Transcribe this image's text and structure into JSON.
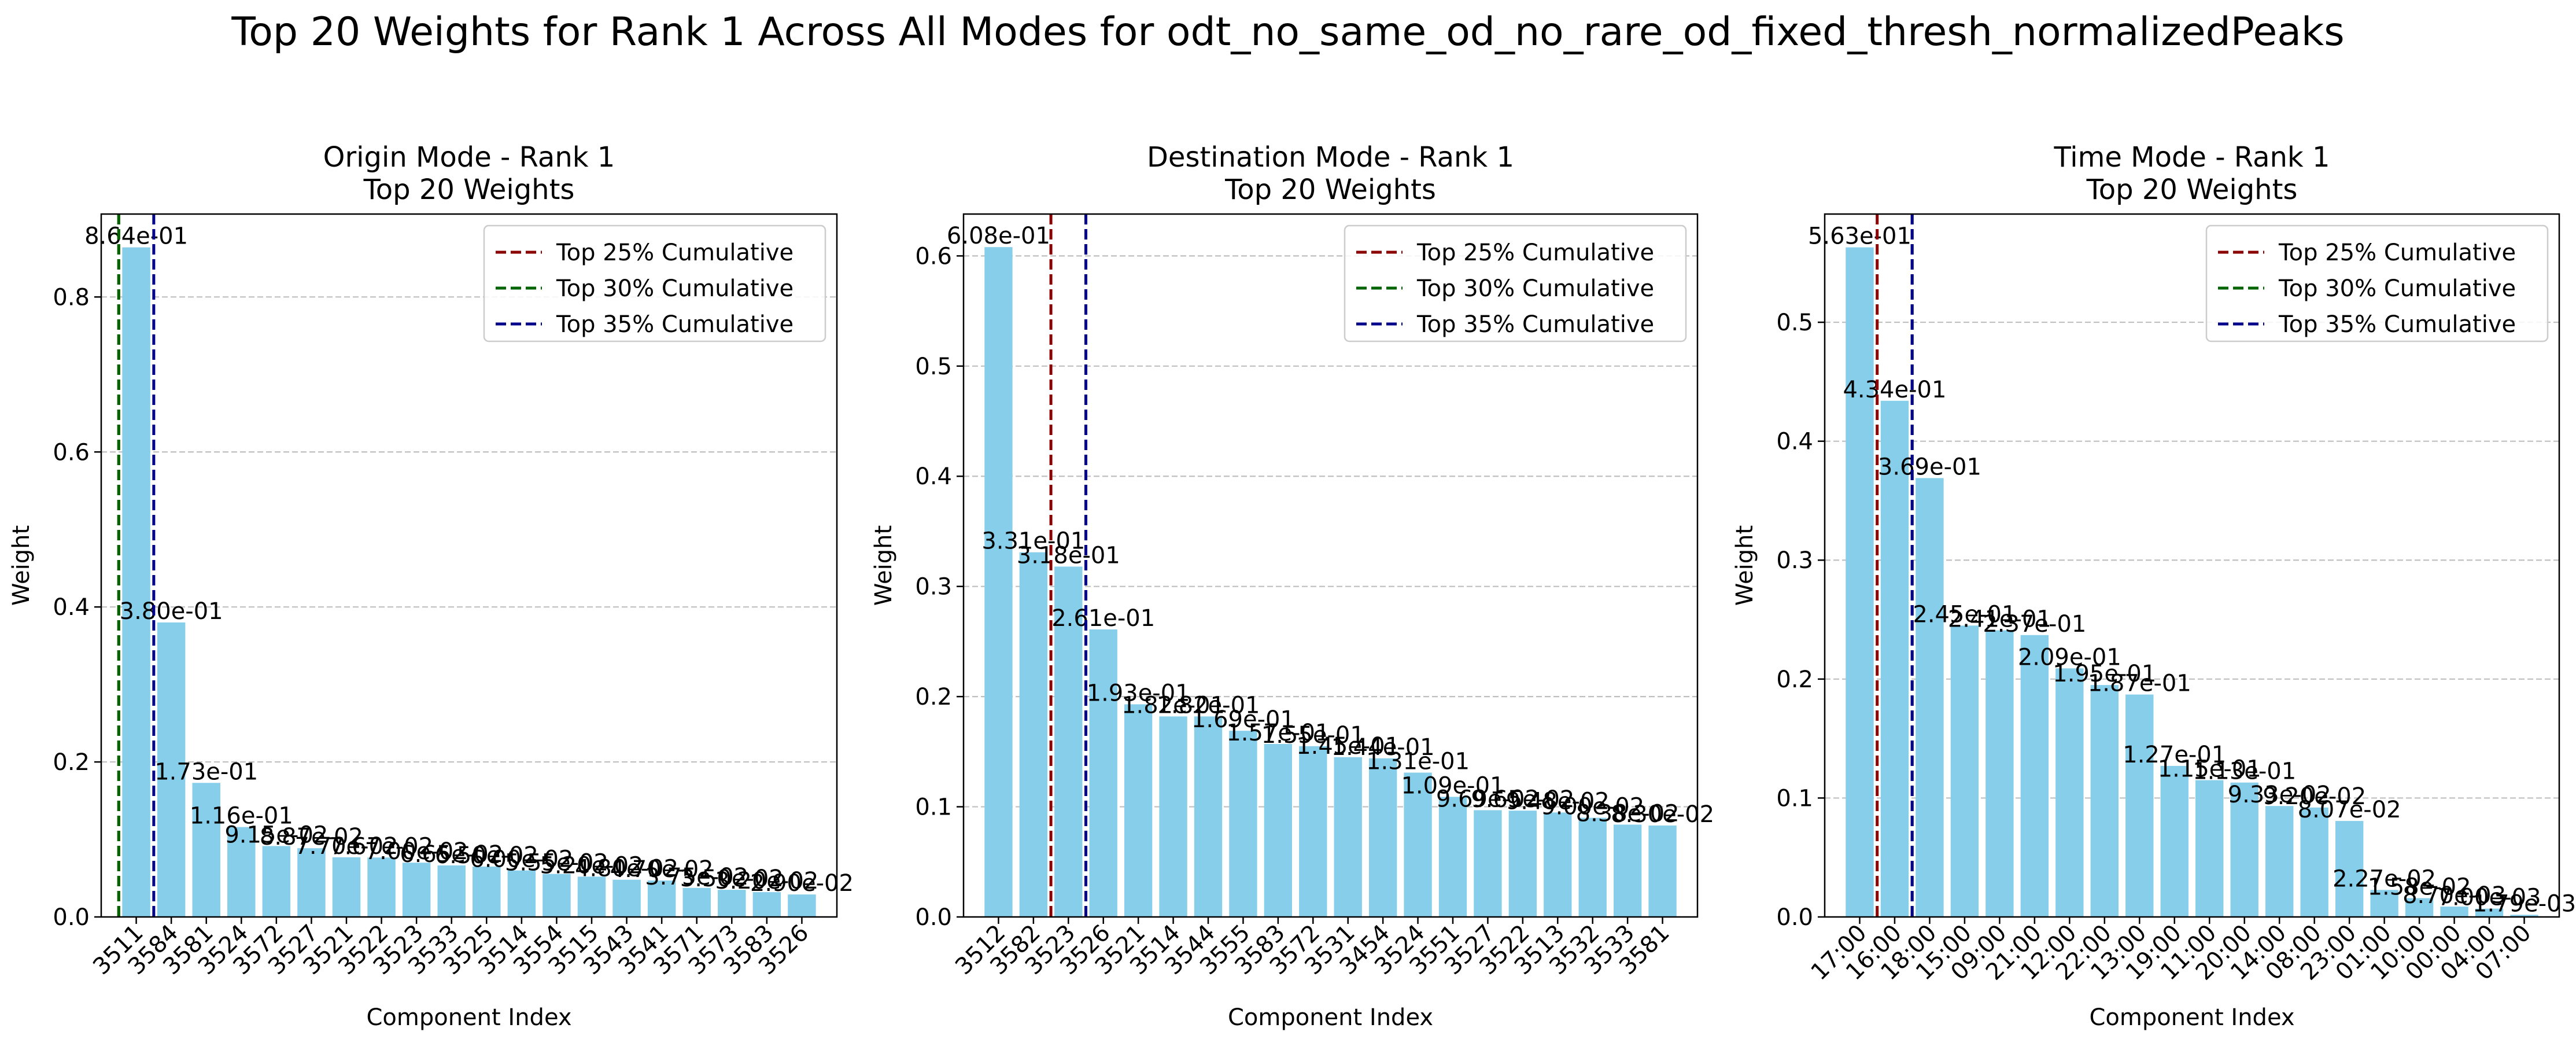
{
  "figure": {
    "title": "Top 20 Weights for Rank 1 Across All Modes for odt_no_same_od_no_rare_od_fixed_thresh_normalizedPeaks"
  },
  "colors": {
    "bar": "#87CEEB",
    "line_25": "#8B0000",
    "line_30": "#006400",
    "line_35": "#00008B",
    "grid": "#b0b0b0"
  },
  "chart_data": [
    {
      "type": "bar",
      "title": "Origin Mode - Rank 1\nTop 20 Weights",
      "xlabel": "Component Index",
      "ylabel": "Weight",
      "ylim": [
        0,
        0.907
      ],
      "yticks": [
        0.0,
        0.2,
        0.4,
        0.6,
        0.8
      ],
      "ytick_labels": [
        "0.0",
        "0.2",
        "0.4",
        "0.6",
        "0.8"
      ],
      "grid": "y-dashed",
      "legend_position": "top-right",
      "categories": [
        "3511",
        "3584",
        "3581",
        "3524",
        "3572",
        "3527",
        "3521",
        "3522",
        "3523",
        "3533",
        "3525",
        "3514",
        "3554",
        "3515",
        "3543",
        "3541",
        "3571",
        "3573",
        "3583",
        "3526"
      ],
      "values": [
        0.864,
        0.38,
        0.173,
        0.116,
        0.0915,
        0.0887,
        0.077,
        0.0767,
        0.07,
        0.0665,
        0.065,
        0.06,
        0.0555,
        0.052,
        0.048,
        0.047,
        0.0375,
        0.035,
        0.032,
        0.029
      ],
      "labels": [
        "8.64e-01",
        "3.80e-01",
        "1.73e-01",
        "1.16e-01",
        "9.15e-02",
        "8.87e-02",
        "7.70e-02",
        "7.67e-02",
        "7.00e-02",
        "6.65e-02",
        "6.50e-02",
        "6.00e-02",
        "5.55e-02",
        "5.20e-02",
        "4.80e-02",
        "4.70e-02",
        "3.75e-02",
        "3.50e-02",
        "3.20e-02",
        "2.90e-02"
      ],
      "cumulative_lines": [
        {
          "name": "Top 25% Cumulative",
          "x_pos": -0.5,
          "color": "line_25"
        },
        {
          "name": "Top 30% Cumulative",
          "x_pos": -0.5,
          "color": "line_30"
        },
        {
          "name": "Top 35% Cumulative",
          "x_pos": 0.5,
          "color": "line_35"
        }
      ]
    },
    {
      "type": "bar",
      "title": "Destination Mode - Rank 1\nTop 20 Weights",
      "xlabel": "Component Index",
      "ylabel": "Weight",
      "ylim": [
        0,
        0.638
      ],
      "yticks": [
        0.0,
        0.1,
        0.2,
        0.3,
        0.4,
        0.5,
        0.6
      ],
      "ytick_labels": [
        "0.0",
        "0.1",
        "0.2",
        "0.3",
        "0.4",
        "0.5",
        "0.6"
      ],
      "grid": "y-dashed",
      "legend_position": "top-right",
      "categories": [
        "3512",
        "3582",
        "3523",
        "3526",
        "3521",
        "3514",
        "3544",
        "3555",
        "3583",
        "3572",
        "3531",
        "3454",
        "3524",
        "3551",
        "3527",
        "3522",
        "3513",
        "3532",
        "3533",
        "3581"
      ],
      "values": [
        0.608,
        0.331,
        0.318,
        0.261,
        0.193,
        0.182,
        0.182,
        0.169,
        0.157,
        0.155,
        0.145,
        0.144,
        0.131,
        0.109,
        0.0969,
        0.0965,
        0.0948,
        0.09,
        0.0838,
        0.083
      ],
      "labels": [
        "6.08e-01",
        "3.31e-01",
        "3.18e-01",
        "2.61e-01",
        "1.93e-01",
        "1.82e-01",
        "1.82e-01",
        "1.69e-01",
        "1.57e-01",
        "1.55e-01",
        "1.45e-01",
        "1.44e-01",
        "1.31e-01",
        "1.09e-01",
        "9.69e-02",
        "9.65e-02",
        "9.48e-02",
        "9.00e-02",
        "8.38e-02",
        "8.30e-02"
      ],
      "cumulative_lines": [
        {
          "name": "Top 25% Cumulative",
          "x_pos": 1.5,
          "color": "line_25"
        },
        {
          "name": "Top 30% Cumulative",
          "x_pos": 2.5,
          "color": "line_30"
        },
        {
          "name": "Top 35% Cumulative",
          "x_pos": 2.5,
          "color": "line_35"
        }
      ]
    },
    {
      "type": "bar",
      "title": "Time Mode - Rank 1\nTop 20 Weights",
      "xlabel": "Component Index",
      "ylabel": "Weight",
      "ylim": [
        0,
        0.591
      ],
      "yticks": [
        0.0,
        0.1,
        0.2,
        0.3,
        0.4,
        0.5
      ],
      "ytick_labels": [
        "0.0",
        "0.1",
        "0.2",
        "0.3",
        "0.4",
        "0.5"
      ],
      "grid": "y-dashed",
      "legend_position": "top-right",
      "categories": [
        "17:00",
        "16:00",
        "18:00",
        "15:00",
        "09:00",
        "21:00",
        "12:00",
        "22:00",
        "13:00",
        "19:00",
        "11:00",
        "20:00",
        "14:00",
        "08:00",
        "23:00",
        "01:00",
        "10:00",
        "00:00",
        "04:00",
        "07:00"
      ],
      "values": [
        0.563,
        0.434,
        0.369,
        0.245,
        0.241,
        0.237,
        0.209,
        0.195,
        0.187,
        0.127,
        0.115,
        0.113,
        0.0933,
        0.092,
        0.0807,
        0.0227,
        0.0158,
        0.0087,
        0.007,
        0.0018
      ],
      "labels": [
        "5.63e-01",
        "4.34e-01",
        "3.69e-01",
        "2.45e-01",
        "2.41e-01",
        "2.37e-01",
        "2.09e-01",
        "1.95e-01",
        "1.87e-01",
        "1.27e-01",
        "1.15e-01",
        "1.13e-01",
        "9.33e-02",
        "9.20e-02",
        "8.07e-02",
        "2.27e-02",
        "1.58e-02",
        "8.70e-03",
        "7.00e-03",
        "1.79e-03"
      ],
      "cumulative_lines": [
        {
          "name": "Top 25% Cumulative",
          "x_pos": 0.5,
          "color": "line_25"
        },
        {
          "name": "Top 30% Cumulative",
          "x_pos": 1.5,
          "color": "line_30"
        },
        {
          "name": "Top 35% Cumulative",
          "x_pos": 1.5,
          "color": "line_35"
        }
      ]
    }
  ]
}
